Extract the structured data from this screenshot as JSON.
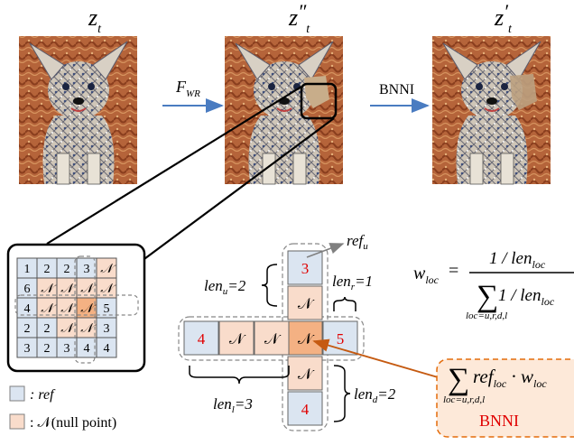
{
  "panels": [
    {
      "label": "z",
      "sub": "t",
      "prime": ""
    },
    {
      "label": "z",
      "sub": "t",
      "prime": "″"
    },
    {
      "label": "z",
      "sub": "t",
      "prime": "′"
    }
  ],
  "arrows": {
    "fwr": {
      "main": "F",
      "sub": "WR"
    },
    "bnni": "BNNI"
  },
  "grid": {
    "rows": [
      [
        "1",
        "2",
        "2",
        "3",
        "N"
      ],
      [
        "6",
        "N",
        "N",
        "N",
        "N"
      ],
      [
        "4",
        "N",
        "N",
        "N",
        "5"
      ],
      [
        "2",
        "2",
        "N",
        "N",
        "3"
      ],
      [
        "3",
        "2",
        "3",
        "4",
        "4"
      ]
    ]
  },
  "legend": {
    "ref": ": ref",
    "null": ": 𝒩(null point)"
  },
  "cross": {
    "vertical": [
      "3",
      "𝒩",
      "𝒩",
      "𝒩",
      "4"
    ],
    "horizontal": [
      "4",
      "𝒩",
      "𝒩",
      "𝒩",
      "5"
    ],
    "ref_u": {
      "main": "ref",
      "sub": "u"
    },
    "len_u": {
      "main": "len",
      "sub": "u",
      "val": "=2"
    },
    "len_r": {
      "main": "len",
      "sub": "r",
      "val": "=1"
    },
    "len_l": {
      "main": "len",
      "sub": "l",
      "val": "=3"
    },
    "len_d": {
      "main": "len",
      "sub": "d",
      "val": "=2"
    }
  },
  "formula": {
    "lhs": "w",
    "lhs_sub": "loc",
    "numerator": "1 / len",
    "numerator_sub": "loc",
    "denominator": "1 / len",
    "denominator_sub": "loc",
    "sum_index": "loc=u,r,d,l"
  },
  "bnni_box": {
    "term1": "ref",
    "term1_sub": "loc",
    "dot": "·",
    "term2": "w",
    "term2_sub": "loc",
    "sum_index": "loc=u,r,d,l",
    "title": "BNNI"
  },
  "colors": {
    "ref_fill": "#dbe5f1",
    "null_fill": "#f9dccb",
    "center_fill": "#f4b183",
    "red_text": "#e00000",
    "arrow_blue": "#4a7cc1",
    "arrow_orange": "#c55a11",
    "bnni_box_fill": "#fde9d9",
    "bnni_box_stroke": "#e46c0a"
  }
}
